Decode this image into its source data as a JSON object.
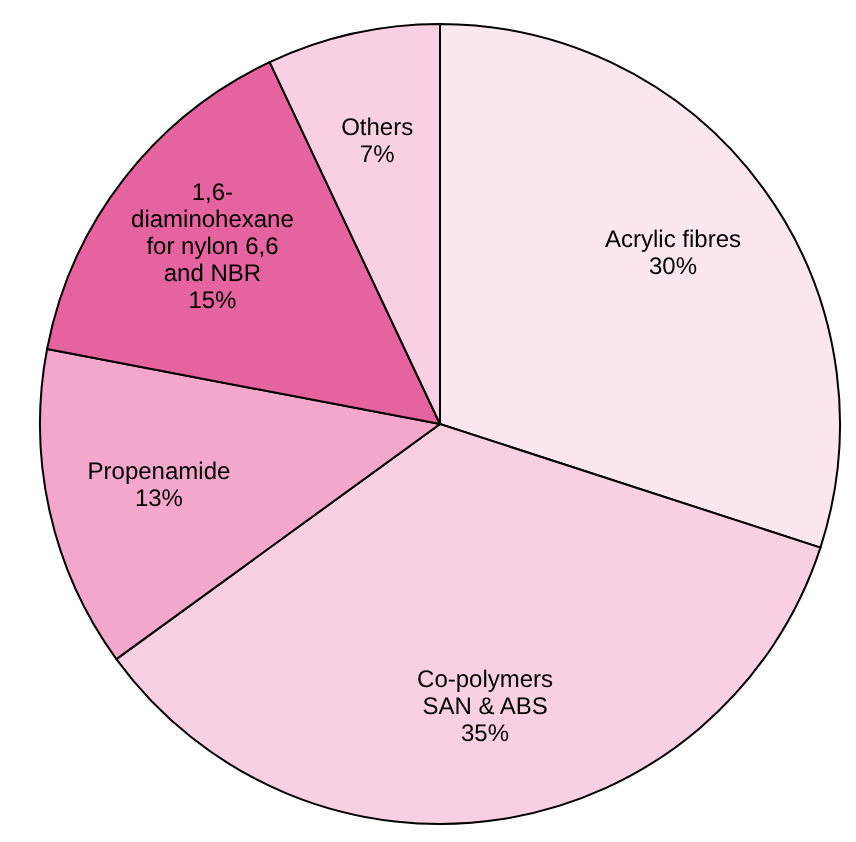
{
  "chart_data": {
    "type": "pie",
    "categories": [
      "Acrylic fibres",
      "Co-polymers SAN & ABS",
      "Propenamide",
      "1,6-diaminohexane for nylon 6,6 and NBR",
      "Others"
    ],
    "values": [
      30,
      35,
      13,
      15,
      7
    ],
    "colors": [
      "#fbe5ef",
      "#f9d0e3",
      "#f2a7cb",
      "#e564a0",
      "#f9d0e3"
    ],
    "value_labels": [
      "30%",
      "35%",
      "13%",
      "15%",
      "7%"
    ]
  }
}
